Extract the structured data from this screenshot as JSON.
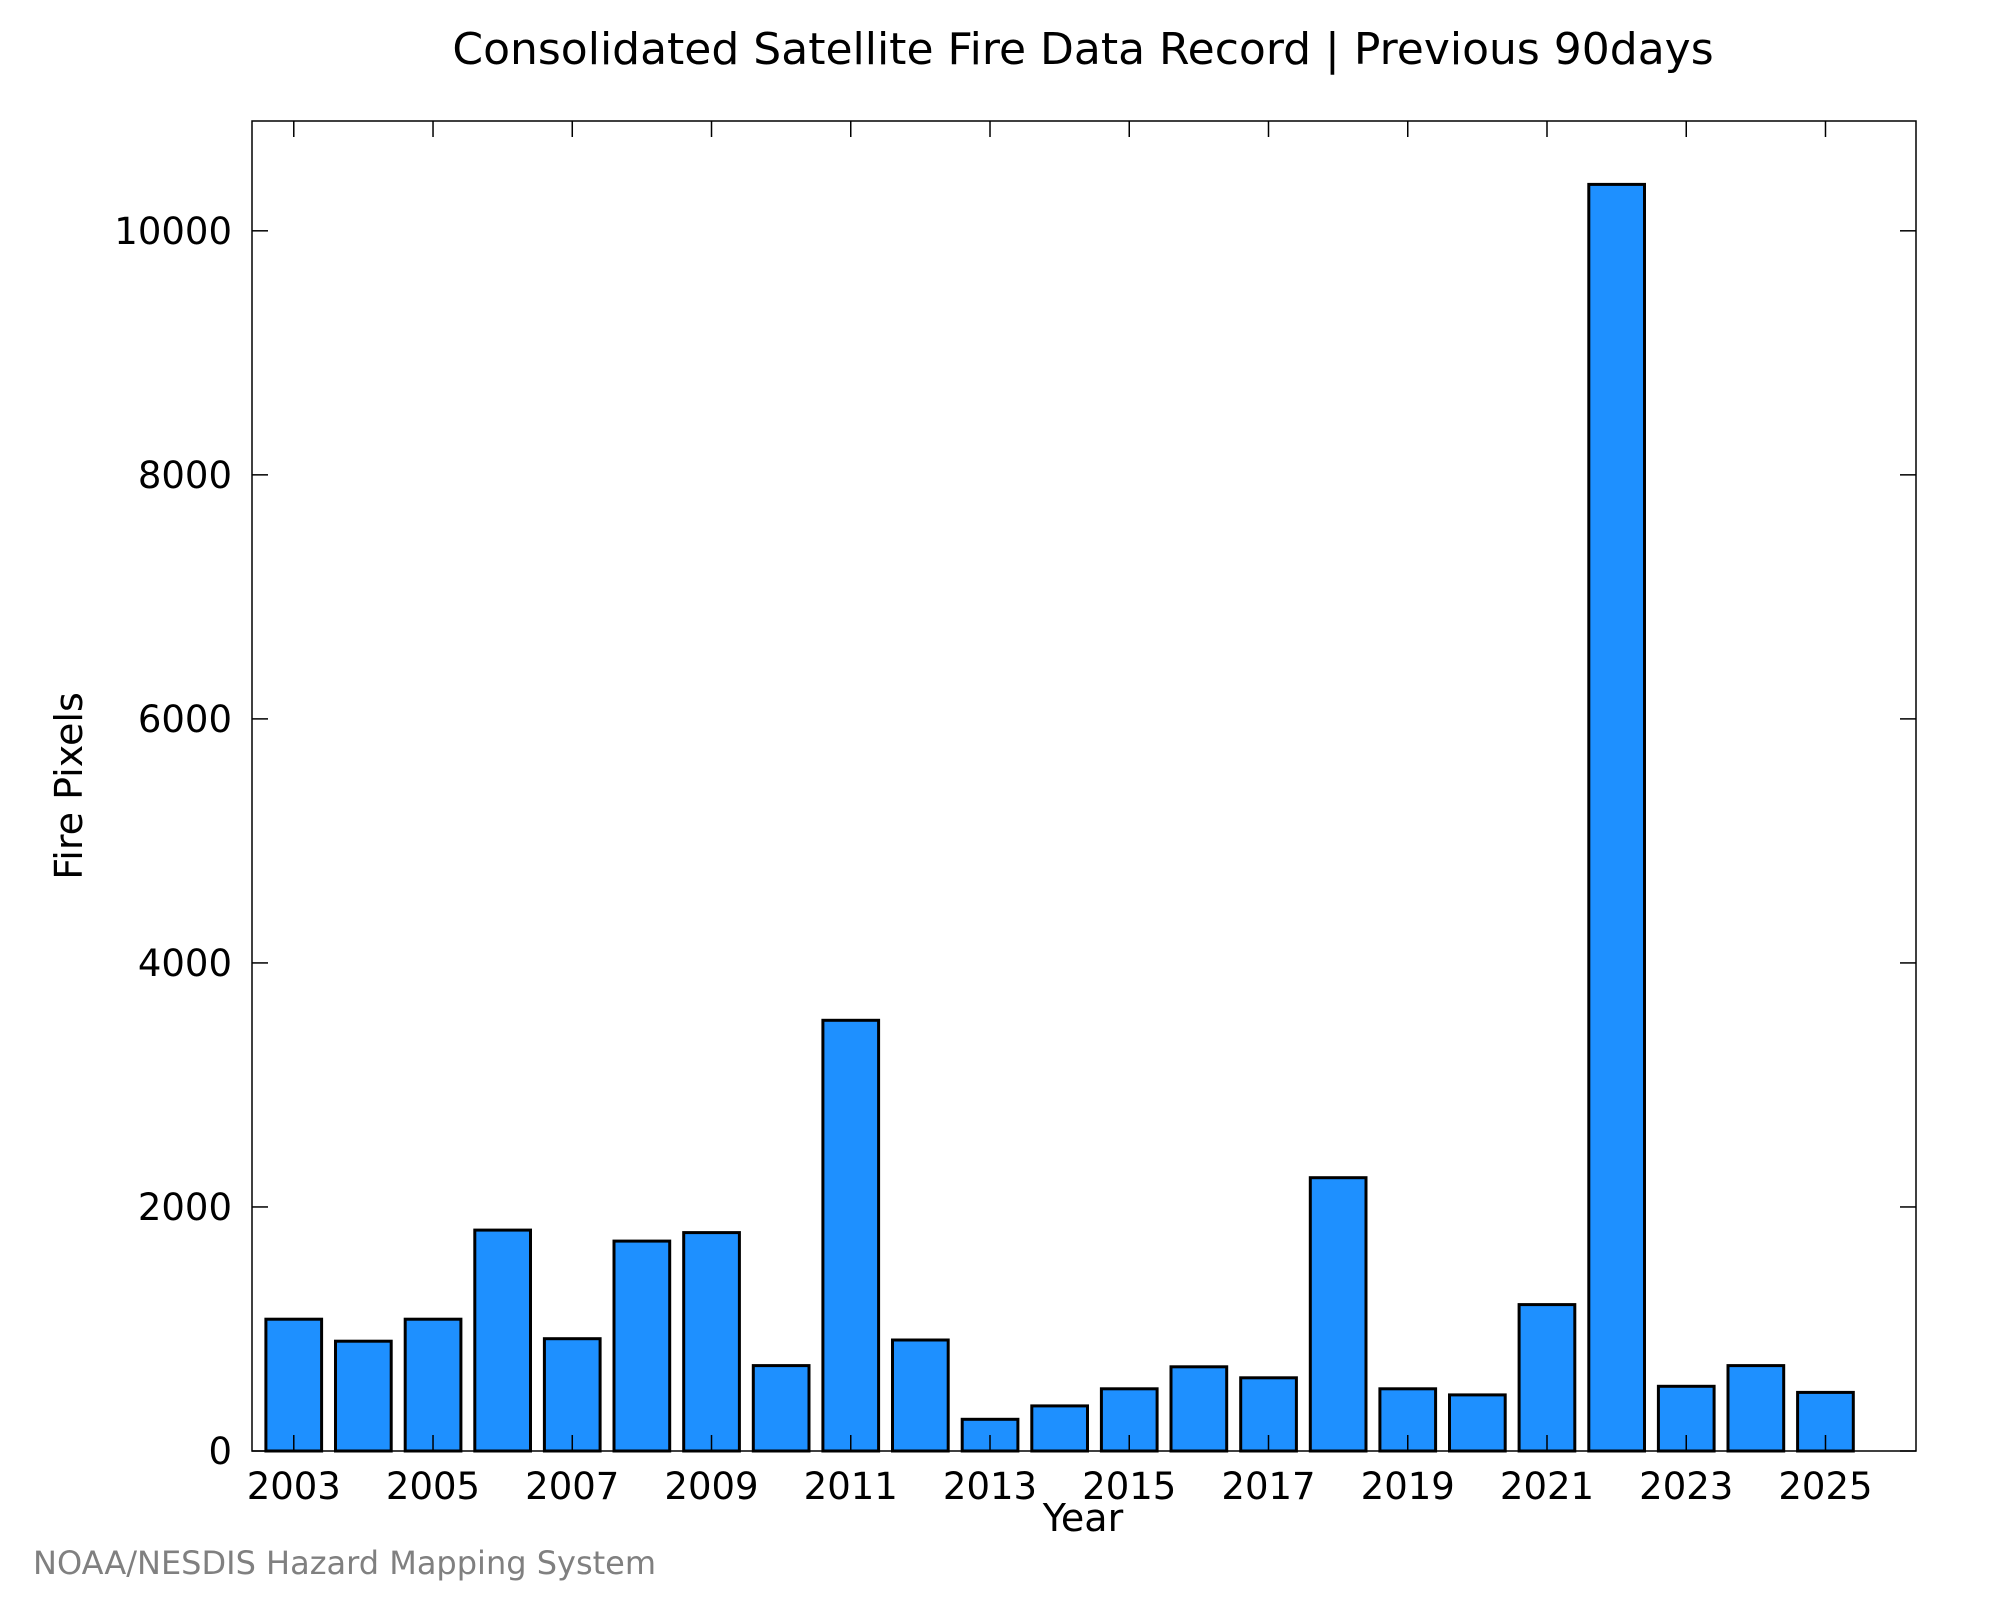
{
  "chart_data": {
    "type": "bar",
    "title": "Consolidated Satellite Fire Data Record | Previous 90days",
    "xlabel": "Year",
    "ylabel": "Fire Pixels",
    "credit": "NOAA/NESDIS Hazard Mapping System",
    "bar_color": "#1e90ff",
    "bar_edge_color": "#000000",
    "grid": false,
    "legend": "none",
    "xlim": [
      2002.4,
      2026.3
    ],
    "ylim": [
      0,
      10900
    ],
    "x_ticks": [
      2003,
      2005,
      2007,
      2009,
      2011,
      2013,
      2015,
      2017,
      2019,
      2021,
      2023,
      2025
    ],
    "y_ticks": [
      0,
      2000,
      4000,
      6000,
      8000,
      10000
    ],
    "categories": [
      2003,
      2004,
      2005,
      2006,
      2007,
      2008,
      2009,
      2010,
      2011,
      2012,
      2013,
      2014,
      2015,
      2016,
      2017,
      2018,
      2019,
      2020,
      2021,
      2022,
      2023,
      2024,
      2025
    ],
    "values": [
      1080,
      900,
      1080,
      1810,
      920,
      1720,
      1790,
      700,
      3530,
      910,
      260,
      370,
      510,
      690,
      600,
      2240,
      510,
      460,
      1200,
      10380,
      530,
      700,
      480
    ]
  }
}
